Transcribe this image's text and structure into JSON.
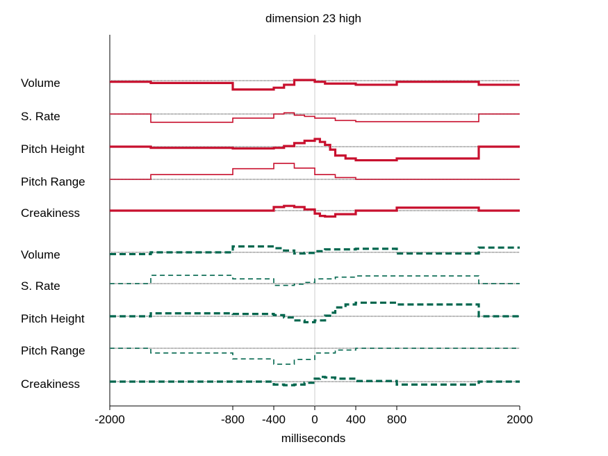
{
  "chart_data": {
    "type": "line",
    "title": "dimension 23 high",
    "xlabel": "milliseconds",
    "ylabel": "",
    "xlim": [
      -2000,
      2000
    ],
    "x_ticks": [
      -2000,
      -800,
      -400,
      0,
      400,
      800,
      2000
    ],
    "x_tick_labels": [
      "-2000",
      "-800",
      "-400",
      "0",
      "400",
      "800",
      "2000"
    ],
    "grid": false,
    "legend": "none",
    "colors": {
      "red": "#c8102e",
      "green": "#00664d",
      "baseline": "#888888",
      "zero_line": "#cccccc"
    },
    "groups": [
      {
        "color": "red",
        "dash": "solid",
        "series": [
          {
            "name": "Volume",
            "weight": "thick",
            "steps": [
              [
                -2000,
                -0.2
              ],
              [
                -1600,
                -0.4
              ],
              [
                -800,
                -1.5
              ],
              [
                -400,
                -1.2
              ],
              [
                -300,
                -0.7
              ],
              [
                -200,
                0.1
              ],
              [
                0,
                -0.2
              ],
              [
                100,
                -0.5
              ],
              [
                400,
                -0.7
              ],
              [
                800,
                -0.2
              ],
              [
                1600,
                -0.7
              ],
              [
                2000,
                -0.7
              ]
            ]
          },
          {
            "name": "S. Rate",
            "weight": "thin",
            "steps": [
              [
                -2000,
                0
              ],
              [
                -1600,
                -1.4
              ],
              [
                -800,
                -0.7
              ],
              [
                -400,
                0
              ],
              [
                -300,
                0.2
              ],
              [
                -200,
                -0.2
              ],
              [
                -100,
                -0.4
              ],
              [
                0,
                -0.7
              ],
              [
                200,
                -1.1
              ],
              [
                400,
                -1.3
              ],
              [
                800,
                -1.3
              ],
              [
                1600,
                0
              ],
              [
                2000,
                0
              ]
            ]
          },
          {
            "name": "Pitch Height",
            "weight": "thick",
            "steps": [
              [
                -2000,
                0
              ],
              [
                -1600,
                -0.2
              ],
              [
                -800,
                -0.3
              ],
              [
                -400,
                -0.2
              ],
              [
                -300,
                0.1
              ],
              [
                -200,
                0.6
              ],
              [
                -100,
                1.0
              ],
              [
                0,
                1.3
              ],
              [
                50,
                0.8
              ],
              [
                100,
                0.3
              ],
              [
                150,
                -0.5
              ],
              [
                200,
                -1.5
              ],
              [
                300,
                -2.0
              ],
              [
                400,
                -2.3
              ],
              [
                800,
                -2.0
              ],
              [
                1600,
                0
              ],
              [
                2000,
                0
              ]
            ]
          },
          {
            "name": "Pitch Range",
            "weight": "thin",
            "steps": [
              [
                -2000,
                0
              ],
              [
                -1600,
                0.8
              ],
              [
                -800,
                1.8
              ],
              [
                -400,
                2.7
              ],
              [
                -200,
                1.9
              ],
              [
                0,
                0.8
              ],
              [
                200,
                0.3
              ],
              [
                400,
                0
              ],
              [
                800,
                0
              ],
              [
                1600,
                0
              ],
              [
                2000,
                0
              ]
            ]
          },
          {
            "name": "Creakiness",
            "weight": "thick",
            "steps": [
              [
                -2000,
                0
              ],
              [
                -1600,
                0
              ],
              [
                -800,
                0
              ],
              [
                -400,
                0.6
              ],
              [
                -300,
                0.8
              ],
              [
                -200,
                0.6
              ],
              [
                -100,
                0.2
              ],
              [
                0,
                -0.5
              ],
              [
                50,
                -0.9
              ],
              [
                100,
                -1.0
              ],
              [
                200,
                -0.6
              ],
              [
                400,
                0
              ],
              [
                800,
                0.5
              ],
              [
                1600,
                0
              ],
              [
                2000,
                0
              ]
            ]
          }
        ]
      },
      {
        "color": "green",
        "dash": "dashed",
        "series": [
          {
            "name": "Volume",
            "weight": "thick",
            "steps": [
              [
                -2000,
                -0.3
              ],
              [
                -1600,
                0
              ],
              [
                -800,
                1.0
              ],
              [
                -400,
                0.7
              ],
              [
                -300,
                0.3
              ],
              [
                -200,
                -0.2
              ],
              [
                -100,
                -0.1
              ],
              [
                0,
                0.2
              ],
              [
                100,
                0.5
              ],
              [
                400,
                0.6
              ],
              [
                800,
                -0.2
              ],
              [
                1600,
                0.8
              ],
              [
                2000,
                0.8
              ]
            ]
          },
          {
            "name": "S. Rate",
            "weight": "thin",
            "steps": [
              [
                -2000,
                0
              ],
              [
                -1600,
                1.4
              ],
              [
                -800,
                0.8
              ],
              [
                -400,
                -0.3
              ],
              [
                -300,
                -0.3
              ],
              [
                -200,
                -0.1
              ],
              [
                -100,
                0.2
              ],
              [
                0,
                0.8
              ],
              [
                200,
                1.1
              ],
              [
                400,
                1.3
              ],
              [
                800,
                1.3
              ],
              [
                1600,
                0
              ],
              [
                2000,
                0
              ]
            ]
          },
          {
            "name": "Pitch Height",
            "weight": "thick",
            "steps": [
              [
                -2000,
                0
              ],
              [
                -1600,
                0.5
              ],
              [
                -800,
                0.4
              ],
              [
                -400,
                0.2
              ],
              [
                -300,
                -0.2
              ],
              [
                -200,
                -0.7
              ],
              [
                -100,
                -1.0
              ],
              [
                0,
                -0.7
              ],
              [
                100,
                0.1
              ],
              [
                150,
                0.6
              ],
              [
                200,
                1.5
              ],
              [
                300,
                2.0
              ],
              [
                400,
                2.3
              ],
              [
                800,
                2.0
              ],
              [
                1600,
                0
              ],
              [
                2000,
                0
              ]
            ]
          },
          {
            "name": "Pitch Range",
            "weight": "thin",
            "steps": [
              [
                -2000,
                0
              ],
              [
                -1600,
                -0.8
              ],
              [
                -800,
                -1.8
              ],
              [
                -400,
                -2.7
              ],
              [
                -200,
                -1.9
              ],
              [
                0,
                -0.8
              ],
              [
                200,
                -0.3
              ],
              [
                400,
                0
              ],
              [
                800,
                0
              ],
              [
                1600,
                0
              ],
              [
                2000,
                0
              ]
            ]
          },
          {
            "name": "Creakiness",
            "weight": "thick",
            "steps": [
              [
                -2000,
                0
              ],
              [
                -1600,
                0
              ],
              [
                -800,
                0
              ],
              [
                -400,
                -0.5
              ],
              [
                -300,
                -0.6
              ],
              [
                -200,
                -0.5
              ],
              [
                -100,
                -0.2
              ],
              [
                0,
                0.5
              ],
              [
                50,
                0.8
              ],
              [
                100,
                0.7
              ],
              [
                200,
                0.5
              ],
              [
                400,
                0.1
              ],
              [
                800,
                -0.5
              ],
              [
                1600,
                0
              ],
              [
                2000,
                0
              ]
            ]
          }
        ]
      }
    ]
  }
}
